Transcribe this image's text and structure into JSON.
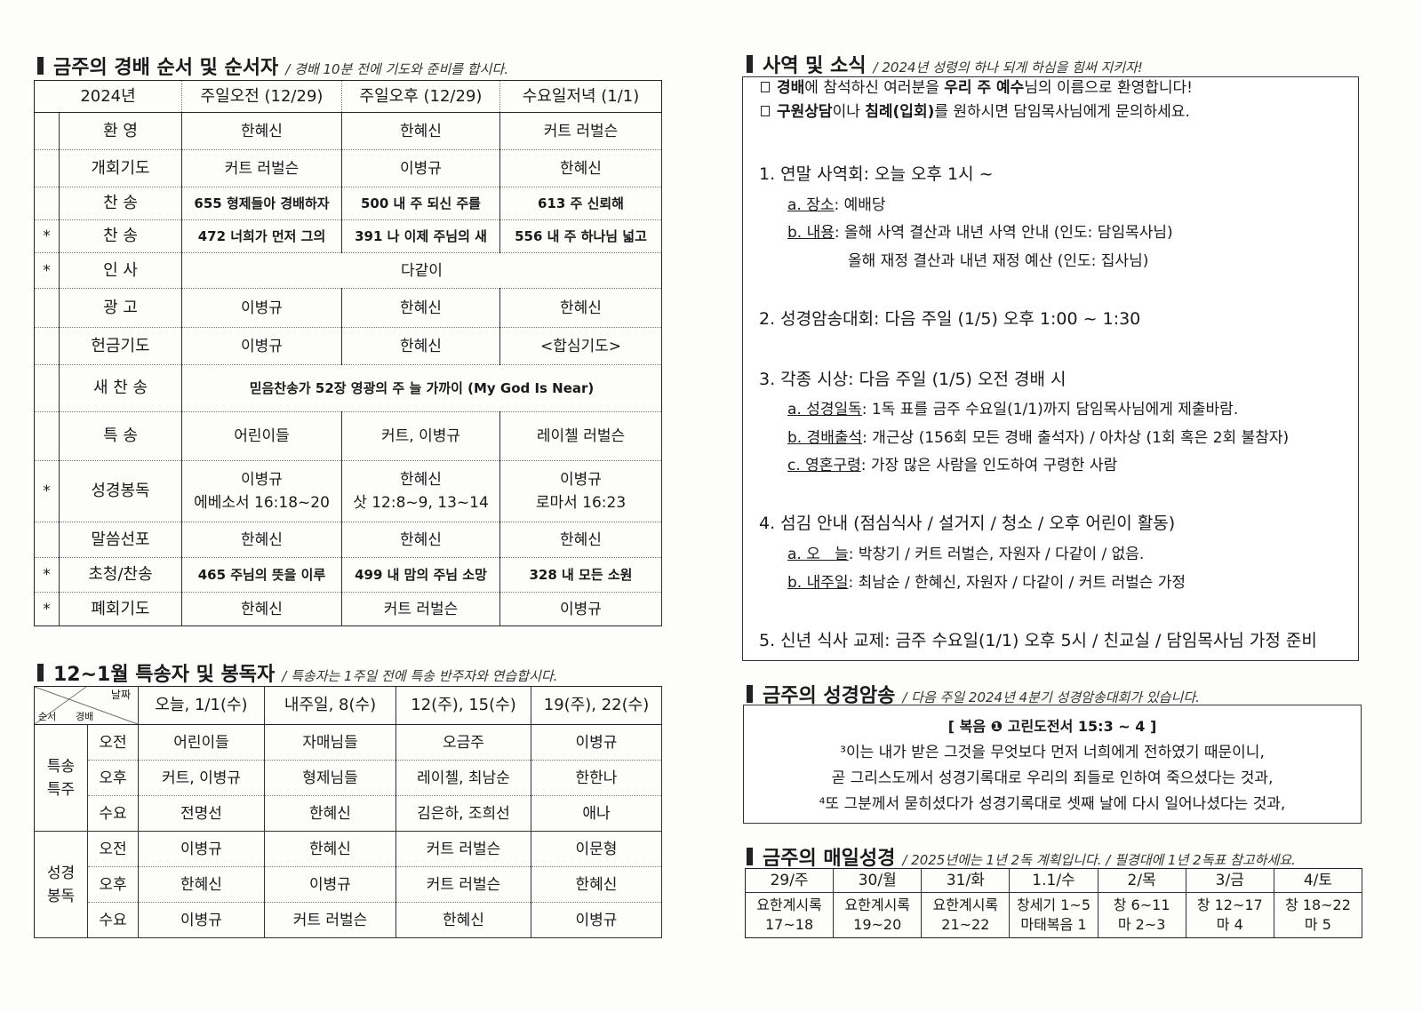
{
  "worship": {
    "title": "금주의 경배 순서 및 순서자",
    "subtitle": "/ 경배 10분 전에 기도와 준비를 합시다.",
    "headers": [
      "2024년",
      "주일오전 (12/29)",
      "주일오후 (12/29)",
      "수요일저녁 (1/1)"
    ],
    "rows": [
      {
        "star": "",
        "label": "환    영",
        "cells": [
          "한혜신",
          "한혜신",
          "커트 러벌슨"
        ]
      },
      {
        "star": "",
        "label": "개회기도",
        "cells": [
          "커트 러벌슨",
          "이병규",
          "한혜신"
        ]
      },
      {
        "star": "",
        "label": "찬    송",
        "bold": true,
        "cells": [
          "655 형제들아 경배하자",
          "500 내 주 되신 주를",
          "613 주 신뢰해"
        ]
      },
      {
        "star": "*",
        "label": "찬    송",
        "bold": true,
        "cells": [
          "472 너희가 먼저 그의",
          "391 나 이제 주님의 새",
          "556 내 주 하나님 넓고"
        ]
      },
      {
        "star": "*",
        "label": "인    사",
        "span": "다같이"
      },
      {
        "star": "",
        "label": "광    고",
        "cells": [
          "이병규",
          "한혜신",
          "한혜신"
        ]
      },
      {
        "star": "",
        "label": "헌금기도",
        "cells": [
          "이병규",
          "한혜신",
          "<합심기도>"
        ]
      },
      {
        "star": "",
        "label": "새 찬 송",
        "bold": true,
        "span": "믿음찬송가 52장 영광의 주 늘 가까이 (My God Is Near)"
      },
      {
        "star": "",
        "label": "특    송",
        "cells": [
          "어린이들",
          "커트, 이병규",
          "레이첼 러벌슨"
        ]
      },
      {
        "star": "*",
        "label": "성경봉독",
        "cells": [
          "이병규\n에베소서 16:18~20",
          "한혜신\n삿 12:8~9, 13~14",
          "이병규\n로마서 16:23"
        ]
      },
      {
        "star": "",
        "label": "말씀선포",
        "cells": [
          "한혜신",
          "한혜신",
          "한혜신"
        ]
      },
      {
        "star": "*",
        "label": "초청/찬송",
        "bold": true,
        "cells": [
          "465 주님의 뜻을 이루",
          "499 내 맘의 주님 소망",
          "328 내 모든 소원"
        ]
      },
      {
        "star": "*",
        "label": "폐회기도",
        "cells": [
          "한혜신",
          "커트 러벌슨",
          "이병규"
        ]
      }
    ]
  },
  "special": {
    "title": "12~1월 특송자 및 봉독자",
    "subtitle": "/ 특송자는 1주일 전에 특송 반주자와 연습합시다.",
    "corner": {
      "top": "날짜",
      "mid": "경배",
      "left": "순서"
    },
    "headers": [
      "오늘, 1/1(수)",
      "내주일, 8(수)",
      "12(주), 15(수)",
      "19(주), 22(수)"
    ],
    "groups": [
      {
        "label": "특송\n특주",
        "rows": [
          {
            "sub": "오전",
            "cells": [
              "어린이들",
              "자매님들",
              "오금주",
              "이병규"
            ]
          },
          {
            "sub": "오후",
            "cells": [
              "커트, 이병규",
              "형제님들",
              "레이첼, 최남순",
              "한한나"
            ]
          },
          {
            "sub": "수요",
            "cells": [
              "전명선",
              "한혜신",
              "김은하, 조희선",
              "애나"
            ]
          }
        ]
      },
      {
        "label": "성경\n봉독",
        "rows": [
          {
            "sub": "오전",
            "cells": [
              "이병규",
              "한혜신",
              "커트 러벌슨",
              "이문형"
            ]
          },
          {
            "sub": "오후",
            "cells": [
              "한혜신",
              "이병규",
              "커트 러벌슨",
              "한혜신"
            ]
          },
          {
            "sub": "수요",
            "cells": [
              "이병규",
              "커트 러벌슨",
              "한혜신",
              "이병규"
            ]
          }
        ]
      }
    ]
  },
  "news": {
    "title": "사역 및 소식",
    "subtitle": "/ 2024년 성령의 하나 되게 하심을 힘써 지키자!",
    "checkbox_icon": "square-bullet-icon",
    "notices": [
      [
        {
          "t": "경배",
          "b": true
        },
        {
          "t": "에 참석하신 여러분을 "
        },
        {
          "t": "우리 주 예수",
          "b": true
        },
        {
          "t": "님의 이름으로 환영합니다!"
        }
      ],
      [
        {
          "t": "구원상담",
          "b": true
        },
        {
          "t": "이나 "
        },
        {
          "t": "침례(입회)",
          "b": true
        },
        {
          "t": "를 원하시면 담임목사님에게 문의하세요."
        }
      ]
    ],
    "items": [
      {
        "head": "1. 연말 사역회:",
        "text": " 오늘 오후 1시 ~",
        "subs": [
          {
            "label": "a. 장소",
            "text": ": 예배당"
          },
          {
            "label": "b. 내용",
            "text": ": 올해 사역 결산과 내년 사역 안내 (인도: 담임목사님)"
          },
          {
            "label": "",
            "text": "올해 재정 결산과 내년 재정 예산 (인도: 집사님)"
          }
        ]
      },
      {
        "head": "2. 성경암송대회:",
        "text": " 다음 주일 (1/5) 오후 1:00 ~ 1:30",
        "subs": []
      },
      {
        "head": "3. 각종 시상:",
        "text": " 다음 주일 (1/5) 오전 경배 시",
        "subs": [
          {
            "label": "a. 성경일독",
            "text": ": 1독 표를 금주 수요일(1/1)까지 담임목사님에게 제출바람."
          },
          {
            "label": "b. 경배출석",
            "text": ": 개근상 (156회 모든 경배 출석자) / 아차상 (1회 혹은 2회 불참자)"
          },
          {
            "label": "c. 영혼구령",
            "text": ": 가장 많은 사람을 인도하여 구령한 사람"
          }
        ]
      },
      {
        "head": "4. 섬김 안내 (점심식사 / 설거지 / 청소 / 오후 어린이 활동)",
        "text": "",
        "subs": [
          {
            "label": "a. 오   늘",
            "text": ": 박창기 / 커트 러벌슨, 자원자 / 다같이 / 없음."
          },
          {
            "label": "b. 내주일",
            "text": ": 최남순 / 한혜신, 자원자 / 다같이 / 커트 러벌슨 가정"
          }
        ]
      },
      {
        "head": "5. 신년 식사 교제:",
        "text": " 금주 수요일(1/1) 오후 5시 / 친교실 / 담임목사님 가정 준비",
        "subs": []
      }
    ]
  },
  "memory": {
    "title": "금주의 성경암송",
    "subtitle": "/ 다음 주일 2024년 4분기 성경암송대회가 있습니다.",
    "reference": "[ 복음 ❶ 고린도전서 15:3 ~ 4 ]",
    "lines": [
      "³이는 내가 받은 그것을 무엇보다 먼저 너희에게 전하였기 때문이니,",
      "곧 그리스도께서 성경기록대로 우리의 죄들로 인하여 죽으셨다는 것과,",
      "⁴또 그분께서 묻히셨다가 성경기록대로 셋째 날에 다시 일어나셨다는 것과,"
    ]
  },
  "daily": {
    "title": "금주의 매일성경",
    "subtitle": "/ 2025년에는 1년 2독 계획입니다. / 필경대에 1년 2독표 참고하세요.",
    "headers": [
      "29/주",
      "30/월",
      "31/화",
      "1.1/수",
      "2/목",
      "3/금",
      "4/토"
    ],
    "cells": [
      "요한계시록\n17~18",
      "요한계시록\n19~20",
      "요한계시록\n21~22",
      "창세기 1~5\n마태복음 1",
      "창 6~11\n마 2~3",
      "창 12~17\n마 4",
      "창 18~22\n마 5"
    ]
  }
}
